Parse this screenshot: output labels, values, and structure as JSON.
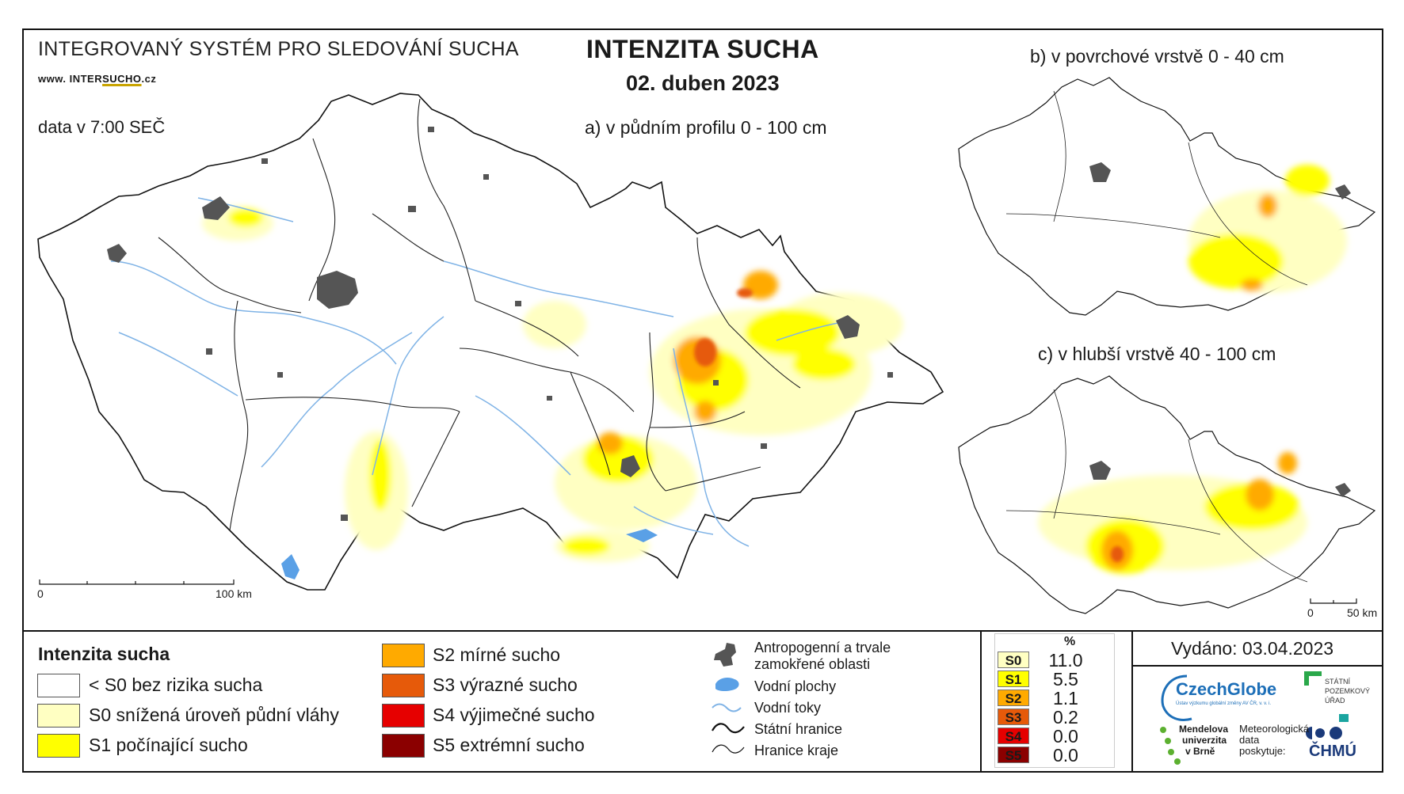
{
  "header": {
    "system_title": "INTEGROVANÝ SYSTÉM PRO SLEDOVÁNÍ SUCHA",
    "website_prefix": "www. INTER",
    "website_mid": "SUCHO",
    "website_suffix": ".cz",
    "data_time": "data v 7:00 SEČ",
    "main_title": "INTENZITA SUCHA",
    "date": "02. duben 2023"
  },
  "maps": {
    "a_title": "a) v půdním profilu 0 - 100 cm",
    "b_title": "b) v povrchové vrstvě 0 - 40 cm",
    "c_title": "c) v hlubší vrstvě 40 - 100 cm",
    "scale_main_start": "0",
    "scale_main_end": "100 km",
    "scale_small_start": "0",
    "scale_small_end": "50 km"
  },
  "legend": {
    "title": "Intenzita sucha",
    "classes": [
      {
        "label": "< S0 bez rizika sucha",
        "color": "#ffffff"
      },
      {
        "label": "S0 snížená úroveň půdní vláhy",
        "color": "#ffffc2"
      },
      {
        "label": "S1 počínající sucho",
        "color": "#ffff00"
      },
      {
        "label": "S2 mírné sucho",
        "color": "#ffaa00"
      },
      {
        "label": "S3 výrazné sucho",
        "color": "#e65a0a"
      },
      {
        "label": "S4 výjimečné sucho",
        "color": "#e60000"
      },
      {
        "label": "S5 extrémní sucho",
        "color": "#8b0000"
      }
    ],
    "symbols": {
      "anthropogenic_line1": "Antropogenní a trvale",
      "anthropogenic_line2": "zamokřené oblasti",
      "water_bodies": "Vodní plochy",
      "streams": "Vodní toky",
      "state_border": "Státní hranice",
      "region_border": "Hranice kraje"
    }
  },
  "percent_table": {
    "header": "%",
    "rows": [
      {
        "label": "S0",
        "value": "11.0",
        "color": "#ffffc2",
        "text_color": "#000000"
      },
      {
        "label": "S1",
        "value": "5.5",
        "color": "#ffff00",
        "text_color": "#000000"
      },
      {
        "label": "S2",
        "value": "1.1",
        "color": "#ffaa00",
        "text_color": "#000000"
      },
      {
        "label": "S3",
        "value": "0.2",
        "color": "#e65a0a",
        "text_color": "#000000"
      },
      {
        "label": "S4",
        "value": "0.0",
        "color": "#e60000",
        "text_color": "#000000"
      },
      {
        "label": "S5",
        "value": "0.0",
        "color": "#8b0000",
        "text_color": "#000000"
      }
    ]
  },
  "footer": {
    "issued": "Vydáno: 03.04.2023",
    "czechglobe": "CzechGlobe",
    "czechglobe_sub": "Ústav výzkumu globální změny AV ČR, v. v. i.",
    "spu_line1": "STÁTNÍ",
    "spu_line2": "POZEMKOVÝ",
    "spu_line3": "ÚŘAD",
    "mendel_line1": "Mendelova",
    "mendel_line2": "univerzita",
    "mendel_line3": "v Brně",
    "meteo_line1": "Meteorologická",
    "meteo_line2": "data",
    "meteo_line3": "poskytuje:",
    "chmu": "ČHMÚ"
  }
}
